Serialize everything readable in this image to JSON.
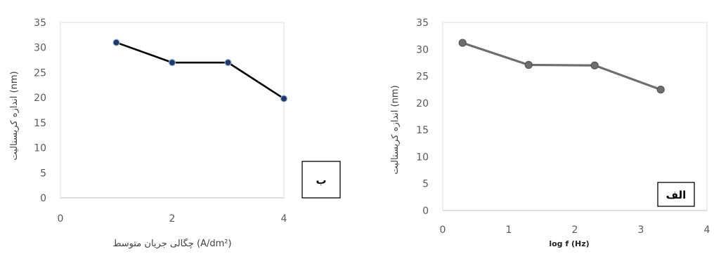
{
  "chart_data": [
    {
      "id": "b",
      "type": "line",
      "panel_label": "ب",
      "xlabel": "چگالی جریان متوسط (A/dm²)",
      "ylabel": "اندازه کریستالیت (nm)",
      "xlim": [
        0,
        4
      ],
      "ylim": [
        0,
        35
      ],
      "x_ticks": [
        "0",
        "2",
        "4"
      ],
      "y_ticks": [
        "0",
        "5",
        "10",
        "15",
        "20",
        "25",
        "30",
        "35"
      ],
      "grid": false,
      "series": [
        {
          "x": [
            1,
            2,
            3,
            4
          ],
          "values": [
            31,
            27,
            27,
            19.8
          ]
        }
      ],
      "colors": {
        "line": "#000000",
        "marker": "#1f3864"
      }
    },
    {
      "id": "alef",
      "type": "line",
      "panel_label": "الف",
      "xlabel": "log f (Hz)",
      "ylabel": "اندازه کریستالیت (nm)",
      "xlim": [
        0,
        4
      ],
      "ylim": [
        0,
        35
      ],
      "x_ticks": [
        "0",
        "1",
        "2",
        "3",
        "4"
      ],
      "y_ticks": [
        "0",
        "5",
        "10",
        "15",
        "20",
        "25",
        "30",
        "35"
      ],
      "grid": false,
      "series": [
        {
          "x": [
            0.3,
            1.3,
            2.3,
            3.3
          ],
          "values": [
            31.2,
            27.1,
            27,
            22.5
          ]
        }
      ],
      "colors": {
        "line": "#6e6e6e",
        "marker": "#6e6e6e"
      }
    }
  ]
}
